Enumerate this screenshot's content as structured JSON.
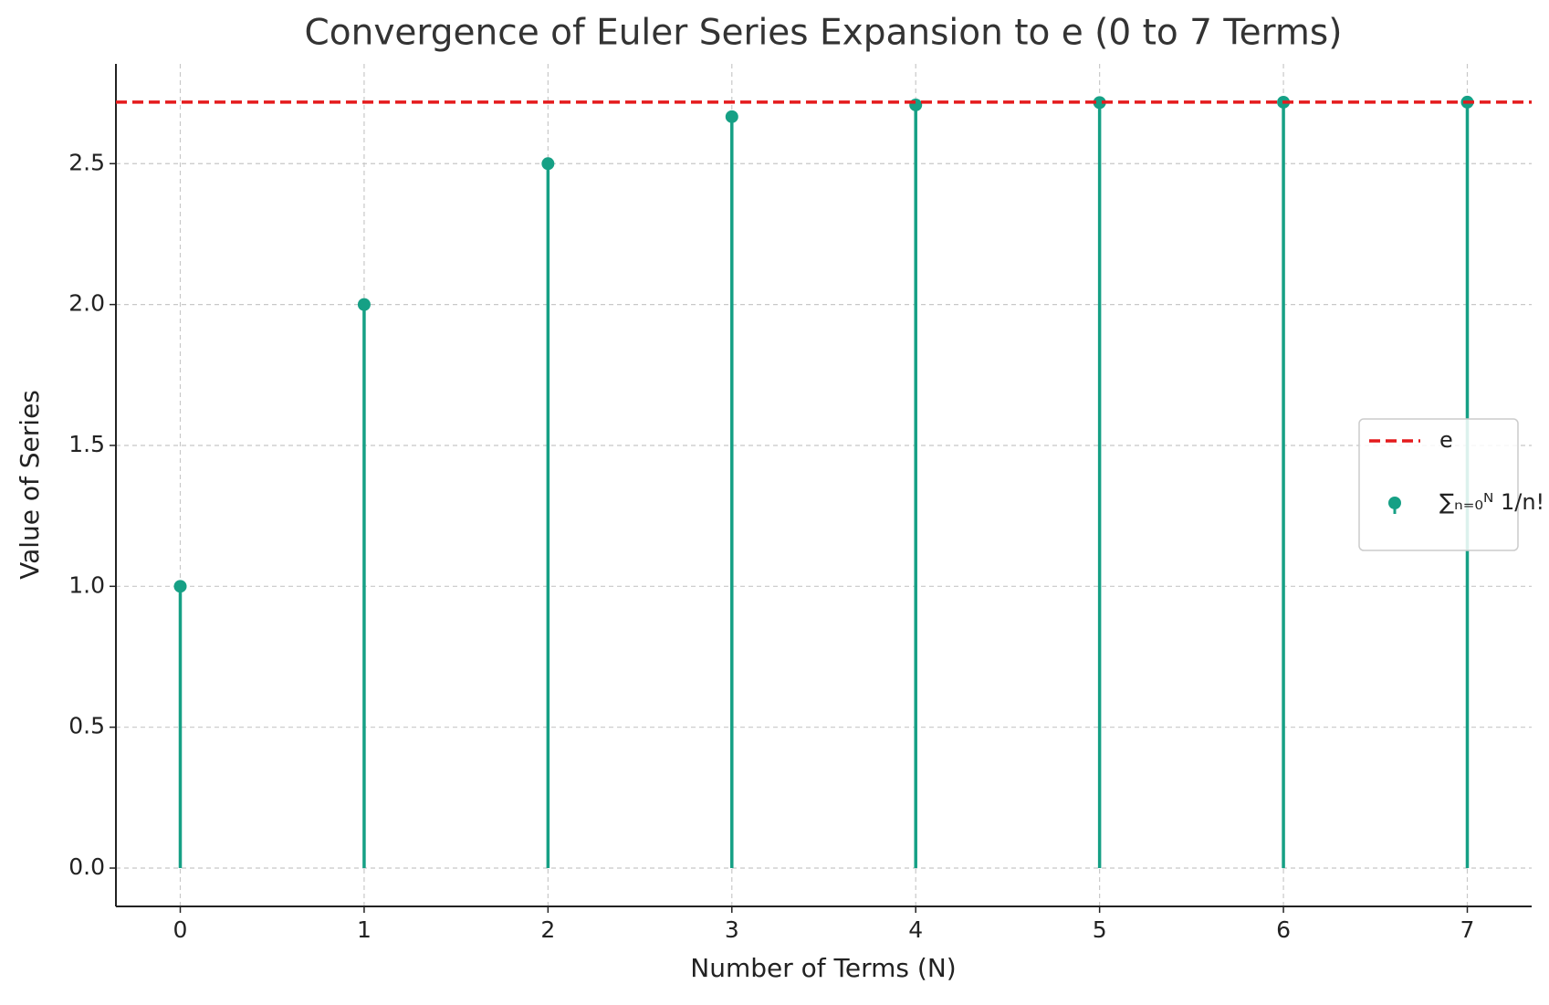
{
  "chart_data": {
    "type": "stem",
    "title": "Convergence of Euler Series Expansion to e (0 to 7 Terms)",
    "x_label": "Number of Terms (N)",
    "y_label": "Value of Series",
    "x": [
      0,
      1,
      2,
      3,
      4,
      5,
      6,
      7
    ],
    "series": [
      {
        "name": "∑ₙ₌₀ᴺ 1/n!",
        "color": "#16a085",
        "values": [
          1,
          2,
          2.5,
          2.6667,
          2.7083,
          2.7167,
          2.7181,
          2.7183
        ]
      }
    ],
    "reference_line": {
      "name": "e",
      "value": 2.71828,
      "color": "#e41a1c"
    },
    "xlim": [
      -0.35,
      7.35
    ],
    "ylim": [
      -0.136,
      2.854
    ],
    "xticks": [
      0,
      1,
      2,
      3,
      4,
      5,
      6,
      7
    ],
    "yticks": [
      {
        "value": 0,
        "label": "0.0"
      },
      {
        "value": 0.5,
        "label": "0.5"
      },
      {
        "value": 1,
        "label": "1.0"
      },
      {
        "value": 1.5,
        "label": "1.5"
      },
      {
        "value": 2,
        "label": "2.0"
      },
      {
        "value": 2.5,
        "label": "2.5"
      }
    ],
    "grid": true,
    "legend": "center right"
  }
}
